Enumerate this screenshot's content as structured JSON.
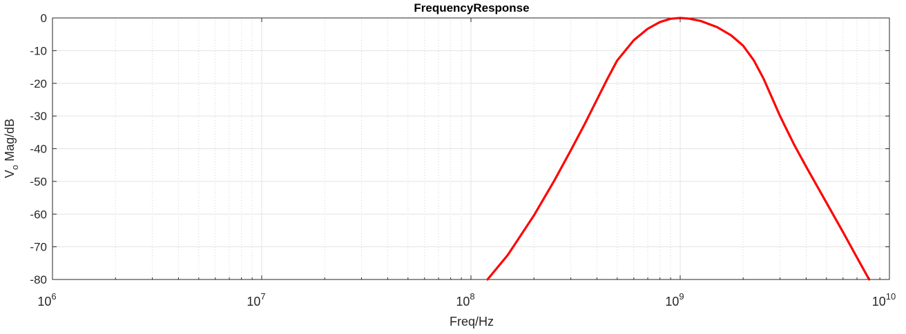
{
  "chart_data": {
    "type": "line",
    "title": "FrequencyResponse",
    "xlabel": "Freq/Hz",
    "ylabel_main": "V",
    "ylabel_sub": "o",
    "ylabel_rest": " Mag/dB",
    "xscale": "log",
    "xlim": [
      1000000,
      10000000000
    ],
    "ylim": [
      -80,
      0
    ],
    "grid": true,
    "minor_grid": true,
    "x_ticks": [
      {
        "base": "10",
        "exp": "6",
        "value": 1000000
      },
      {
        "base": "10",
        "exp": "7",
        "value": 10000000
      },
      {
        "base": "10",
        "exp": "8",
        "value": 100000000
      },
      {
        "base": "10",
        "exp": "9",
        "value": 1000000000
      },
      {
        "base": "10",
        "exp": "10",
        "value": 10000000000
      }
    ],
    "y_ticks": [
      {
        "label": "0",
        "value": 0
      },
      {
        "label": "-10",
        "value": -10
      },
      {
        "label": "-20",
        "value": -20
      },
      {
        "label": "-30",
        "value": -30
      },
      {
        "label": "-40",
        "value": -40
      },
      {
        "label": "-50",
        "value": -50
      },
      {
        "label": "-60",
        "value": -60
      },
      {
        "label": "-70",
        "value": -70
      },
      {
        "label": "-80",
        "value": -80
      }
    ],
    "series": [
      {
        "color": "#ff0000",
        "x": [
          120000000,
          150000000,
          200000000,
          250000000,
          300000000,
          350000000,
          400000000,
          450000000,
          500000000,
          600000000,
          700000000,
          800000000,
          900000000,
          1000000000,
          1100000000,
          1250000000,
          1500000000,
          1750000000,
          2000000000,
          2250000000,
          2500000000,
          2750000000,
          3000000000,
          3500000000,
          4000000000,
          5000000000,
          6000000000,
          7000000000,
          8000000000
        ],
        "y": [
          -80,
          -72.5,
          -60.4,
          -49.8,
          -40.5,
          -32.4,
          -25.0,
          -18.5,
          -13.0,
          -6.8,
          -3.3,
          -1.25,
          -0.25,
          0.0,
          -0.2,
          -0.9,
          -2.8,
          -5.3,
          -8.5,
          -13.0,
          -18.5,
          -24.5,
          -30.0,
          -38.7,
          -45.5,
          -56.5,
          -65.5,
          -73.3,
          -80
        ]
      }
    ]
  }
}
